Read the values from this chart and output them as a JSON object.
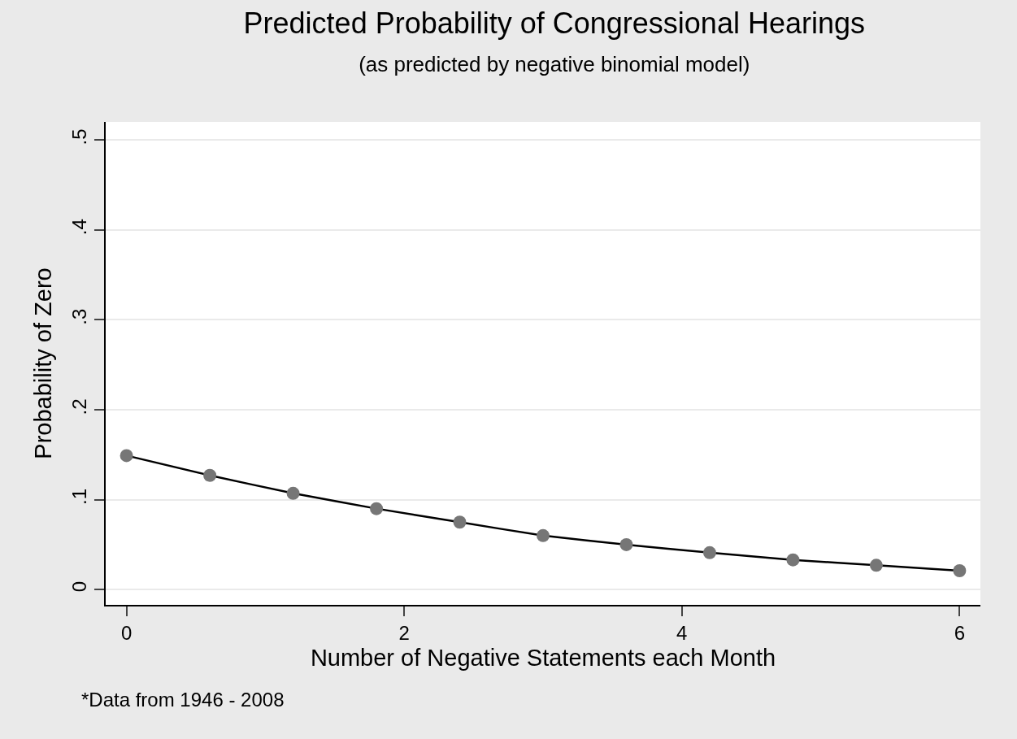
{
  "chart_data": {
    "type": "line",
    "title": "Predicted Probability of Congressional Hearings",
    "subtitle": "(as predicted by negative binomial model)",
    "xlabel": "Number of Negative Statements each Month",
    "ylabel": "Probability of Zero",
    "annotations": [
      "*Data from 1946 - 2008"
    ],
    "x": [
      0,
      0.6,
      1.2,
      1.8,
      2.4,
      3,
      3.6,
      4.2,
      4.8,
      5.4,
      6
    ],
    "series": [
      {
        "color": "#767676",
        "values": [
          0.149,
          0.127,
          0.107,
          0.09,
          0.075,
          0.06,
          0.05,
          0.041,
          0.033,
          0.027,
          0.021
        ]
      }
    ],
    "xlim": [
      -0.15,
      6.15
    ],
    "xticks": [
      0,
      2,
      4,
      6
    ],
    "ylim": [
      -0.017,
      0.52
    ],
    "yticks": [
      0,
      {
        "value": 0.1,
        "label": ".1"
      },
      {
        "value": 0.2,
        "label": ".2"
      },
      {
        "value": 0.3,
        "label": ".3"
      },
      {
        "value": 0.4,
        "label": ".4"
      },
      {
        "value": 0.5,
        "label": ".5"
      }
    ],
    "grid": "y",
    "marker": "circle",
    "line_style": "solid"
  }
}
